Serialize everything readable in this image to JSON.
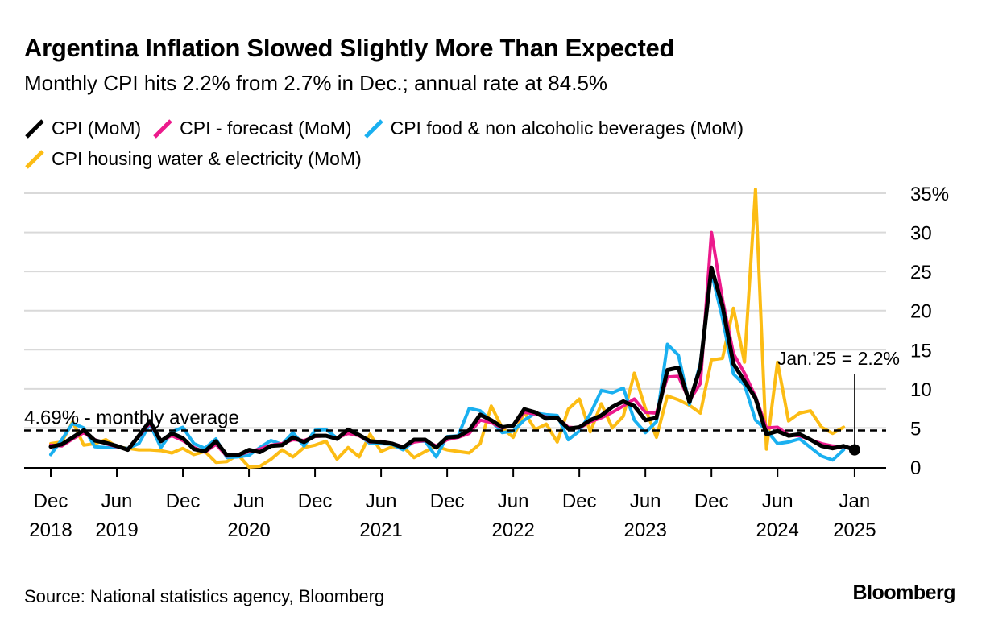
{
  "chart_data": {
    "type": "line",
    "title": "Argentina Inflation Slowed Slightly More Than Expected",
    "subtitle": "Monthly CPI hits 2.2% from 2.7% in Dec.; annual rate at 84.5%",
    "x_start": "Dec 2018",
    "x_end": "Jan 2025",
    "x_frequency": "monthly",
    "x_ticks": [
      {
        "month": "Dec",
        "year": "2018",
        "index": 0
      },
      {
        "month": "Jun",
        "year": "2019",
        "index": 6
      },
      {
        "month": "Dec",
        "year": "",
        "index": 12
      },
      {
        "month": "Jun",
        "year": "2020",
        "index": 18
      },
      {
        "month": "Dec",
        "year": "",
        "index": 24
      },
      {
        "month": "Jun",
        "year": "2021",
        "index": 30
      },
      {
        "month": "Dec",
        "year": "",
        "index": 36
      },
      {
        "month": "Jun",
        "year": "2022",
        "index": 42
      },
      {
        "month": "Dec",
        "year": "",
        "index": 48
      },
      {
        "month": "Jun",
        "year": "2023",
        "index": 54
      },
      {
        "month": "Dec",
        "year": "",
        "index": 60
      },
      {
        "month": "Jun",
        "year": "2024",
        "index": 66
      },
      {
        "month": "Jan",
        "year": "2025",
        "index": 73
      }
    ],
    "y_ticks": [
      "0",
      "5",
      "10",
      "15",
      "20",
      "25",
      "30",
      "35%"
    ],
    "ylim": [
      0,
      35
    ],
    "y_axis_side": "right",
    "grid": true,
    "legend_position": "top",
    "series": [
      {
        "name": "CPI (MoM)",
        "color": "#000000",
        "values": [
          2.6,
          2.9,
          3.8,
          4.7,
          3.4,
          3.1,
          2.7,
          2.2,
          4.0,
          5.9,
          3.3,
          4.3,
          3.7,
          2.3,
          2.0,
          3.3,
          1.5,
          1.5,
          2.2,
          1.9,
          2.7,
          2.8,
          3.8,
          3.2,
          4.0,
          4.0,
          3.6,
          4.8,
          4.1,
          3.3,
          3.2,
          3.0,
          2.5,
          3.5,
          3.5,
          2.5,
          3.8,
          3.9,
          4.7,
          6.7,
          6.0,
          5.1,
          5.3,
          7.4,
          7.0,
          6.2,
          6.3,
          4.9,
          5.1,
          6.0,
          6.6,
          7.7,
          8.4,
          7.8,
          6.0,
          6.3,
          12.4,
          12.7,
          8.3,
          12.8,
          25.5,
          20.6,
          13.2,
          11.0,
          8.8,
          4.2,
          4.6,
          4.0,
          4.2,
          3.5,
          2.7,
          2.4,
          2.7,
          2.2
        ]
      },
      {
        "name": "CPI - forecast (MoM)",
        "color": "#ec1a8c",
        "values": [
          2.8,
          2.7,
          3.6,
          4.4,
          3.5,
          3.0,
          2.6,
          2.3,
          3.9,
          5.6,
          3.4,
          4.0,
          3.4,
          2.5,
          1.9,
          2.9,
          1.4,
          1.5,
          2.0,
          2.3,
          2.8,
          3.0,
          3.5,
          3.4,
          3.9,
          4.0,
          3.7,
          4.3,
          4.0,
          3.2,
          3.3,
          3.0,
          2.6,
          3.2,
          3.4,
          2.7,
          3.5,
          3.8,
          4.3,
          6.0,
          5.7,
          5.0,
          5.3,
          7.0,
          6.8,
          6.4,
          6.3,
          5.1,
          5.0,
          5.8,
          6.3,
          7.0,
          7.8,
          8.7,
          7.0,
          6.9,
          11.5,
          11.6,
          8.5,
          10.7,
          30.0,
          21.4,
          14.5,
          12.0,
          9.0,
          5.0,
          5.1,
          4.1,
          4.0,
          3.5,
          3.0,
          2.7,
          2.6,
          2.4
        ]
      },
      {
        "name": "CPI food & non alcoholic beverages (MoM)",
        "color": "#1ab0f0",
        "values": [
          1.6,
          3.5,
          5.6,
          5.0,
          2.6,
          2.5,
          2.5,
          2.4,
          3.0,
          5.5,
          2.5,
          4.5,
          5.1,
          3.0,
          2.4,
          3.6,
          1.2,
          1.3,
          1.5,
          2.5,
          3.4,
          2.9,
          4.4,
          2.7,
          4.7,
          4.8,
          3.7,
          4.5,
          4.1,
          3.0,
          3.0,
          2.9,
          2.2,
          3.3,
          3.3,
          1.3,
          3.9,
          4.0,
          7.5,
          7.2,
          5.9,
          4.4,
          4.6,
          6.0,
          6.9,
          6.7,
          6.6,
          3.5,
          4.6,
          6.8,
          9.8,
          9.5,
          10.1,
          6.0,
          4.4,
          5.8,
          15.7,
          14.3,
          8.0,
          13.3,
          24.9,
          19.0,
          11.9,
          10.5,
          6.0,
          4.7,
          3.0,
          3.2,
          3.6,
          2.5,
          1.4,
          0.9,
          2.2,
          null
        ]
      },
      {
        "name": "CPI housing water & electricity (MoM)",
        "color": "#fcbc14",
        "values": [
          3.0,
          3.2,
          5.8,
          2.8,
          3.0,
          3.5,
          2.6,
          2.4,
          2.2,
          2.2,
          2.1,
          1.8,
          2.4,
          1.6,
          2.0,
          0.6,
          0.7,
          1.6,
          0.0,
          0.1,
          1.0,
          2.2,
          1.3,
          2.5,
          2.8,
          3.3,
          1.0,
          2.5,
          1.3,
          4.2,
          2.0,
          2.6,
          2.6,
          1.2,
          2.0,
          2.6,
          2.2,
          2.0,
          1.8,
          3.0,
          7.8,
          5.0,
          3.8,
          7.0,
          4.8,
          5.5,
          3.2,
          7.4,
          8.7,
          4.5,
          8.1,
          5.0,
          6.5,
          12.0,
          7.5,
          3.8,
          9.1,
          8.6,
          7.9,
          6.9,
          13.7,
          13.9,
          20.3,
          13.4,
          35.5,
          2.3,
          13.4,
          5.9,
          6.9,
          7.2,
          5.1,
          4.3,
          5.1,
          null
        ]
      }
    ],
    "annotations": {
      "average_value": 4.69,
      "average_label": "4.69% - monthly average",
      "last_point_label": "Jan.'25 = 2.2%"
    }
  },
  "footer": {
    "source": "Source: National statistics agency, Bloomberg",
    "logo": "Bloomberg"
  }
}
